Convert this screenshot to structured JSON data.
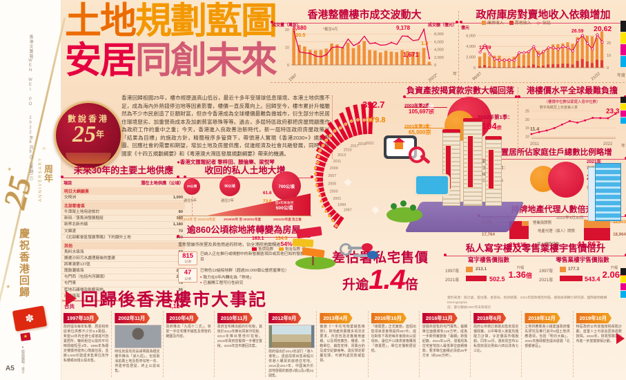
{
  "colors": {
    "accent_red": "#e50038",
    "crimson": "#c2003c",
    "orange": "#f08300",
    "bar_orange": "#f0913a",
    "gold": "#c8a062"
  },
  "page": {
    "paper_name": "香港文匯報WEN WEI PO",
    "date": "2022年6月8日（星期三）",
    "page_no": "A5",
    "credit": "●版面編輯：采子",
    "anniversary": {
      "num": "25",
      "suffix": "周年",
      "en": "ANNIVERSARY",
      "celebrate": "慶祝香港回歸",
      "flag_icon": "✽"
    }
  },
  "header": {
    "t1a": "土地",
    "t1b": "規劃藍圖",
    "t2a": "安居",
    "t2b": "同創未來",
    "badge_top": "數說香港",
    "badge_num": "25",
    "badge_suffix": "年",
    "intro": "香港回歸祖國25年，樓市經歷過高山低谷，最近十多年受環球低息環境、本港土地供應不足，成為海內外熱錢停泊地等因素影響，樓價一直反覆向上。回歸至今，樓市累計升幅雖然為不少市民創造了巨額財富，但亦令香港成為全球樓價最難負擔城市，衍生部分市民居住環境惡劣、加重營商成本及加劇貧富懸殊等等。過去，多屆特區政府都把房屋問題應作為政府工作的重中之重；今天，香港進入良政善治新時代，新一屆特區政府房屋政策以「結果為目標」的施政方針，精簡程序多管齊下，帶領港人實現《香港2030+》規劃藍圖、回應社會的需要和期望，增加土地及房屋供應，促進經濟及社會共融發展，同時把握國家《十四五規劃綱要》和《粵港澳大灣區發展規劃綱要》帶來的機遇。",
    "byline": "●香港文匯報記者 黎梓田、顏倫樂、梁悅琴"
  },
  "chart_data": [
    {
      "id": "transactions",
      "type": "bar+line",
      "title": "香港整體樓市成交波動大",
      "note": "*截至4月",
      "left_axis_label": "成交量（萬伙）",
      "right_axis_label": "成交額（億元）",
      "left_ticks": [
        "20",
        "10",
        "0"
      ],
      "right_ticks": [
        "8,000",
        "6,000",
        "4,000",
        "2,000",
        "0"
      ],
      "x_start": "1997",
      "x_end": "2022*",
      "x_suffix": "年",
      "left_max": 22,
      "right_max": 10000,
      "volume": [
        20.5,
        11.4,
        10.5,
        8.5,
        8.3,
        8.5,
        9.3,
        12.2,
        11.7,
        10.0,
        12.6,
        9.6,
        11.5,
        13.6,
        8.5,
        8.2,
        7.1,
        8.1,
        7.6,
        7.3,
        8.4,
        7.9,
        7.5,
        7.4,
        9.7,
        1.8
      ],
      "amount": [
        8680,
        3400,
        3100,
        3000,
        2300,
        2100,
        2650,
        4480,
        4700,
        4450,
        6700,
        5000,
        5700,
        7430,
        5500,
        5700,
        5100,
        5200,
        5800,
        5300,
        7500,
        7400,
        6300,
        6500,
        9178,
        1671
      ],
      "annotations": {
        "amount_start": "8,680",
        "volume_start": "20.5",
        "amount_peak": "9,178",
        "volume_end": "1.8",
        "amount_end": "1,671"
      }
    },
    {
      "id": "treasury",
      "type": "stacked-bar+line",
      "title": "政府庫房對賣地收入依賴增加",
      "unit": "億元",
      "right_unit": "%",
      "legend": [
        "庫房收入",
        "賣地收入",
        "佔比"
      ],
      "left_ticks": [
        "6,000",
        "4,000",
        "2,000",
        "0"
      ],
      "right_ticks": [
        "20",
        "10",
        "0"
      ],
      "x_start": "96/97",
      "x_end": "21/22",
      "x_suffix": "年度",
      "left_max": 7000,
      "right_max": 30,
      "revenue": [
        2080,
        2810,
        2160,
        2250,
        2250,
        1750,
        1780,
        2070,
        2640,
        2470,
        2880,
        3580,
        3160,
        3180,
        3760,
        4380,
        4420,
        4550,
        4780,
        4500,
        5730,
        6200,
        6000,
        5900,
        5640,
        6820
      ],
      "land": [
        262,
        505,
        240,
        160,
        135,
        105,
        105,
        125,
        320,
        300,
        370,
        620,
        320,
        420,
        620,
        690,
        670,
        770,
        770,
        610,
        1280,
        1650,
        1170,
        890,
        1500,
        1410
      ],
      "ratio": [
        12.59,
        18,
        11,
        7,
        6,
        6,
        6,
        6,
        12,
        12,
        13,
        17,
        10,
        13,
        16,
        16,
        15,
        17,
        16,
        13.5,
        22,
        26,
        19.5,
        15,
        26.59,
        20.62
      ],
      "annotations": {
        "start": "12.59",
        "peak": "26.59",
        "end": "20.62"
      }
    },
    {
      "id": "affordability",
      "type": "line",
      "title": "港樓價水平全球最難負擔",
      "subtitle": "（樓價中位數佔家庭入息中位數）",
      "note": "數字為截至上年度第三季",
      "y_ticks": [
        "25",
        "20",
        "15",
        "10"
      ],
      "x_start": "2011",
      "x_end": "2022",
      "x_suffix": "年",
      "x": [
        2011,
        2012,
        2013,
        2014,
        2015,
        2016,
        2017,
        2018,
        2019,
        2020,
        2021,
        2022
      ],
      "values": [
        11.4,
        12.6,
        13.5,
        14.9,
        17.0,
        19.0,
        18.1,
        19.4,
        20.9,
        20.8,
        20.7,
        23.3
      ],
      "annotations": {
        "start": "11.4",
        "end": "23.3"
      }
    },
    {
      "id": "price-rent",
      "type": "radial-bar+line",
      "legend": [
        "售價指數",
        "租金指數"
      ],
      "x_suffix": "年",
      "years": [
        1997,
        1998,
        1999,
        2000,
        2001,
        2002,
        2003,
        2004,
        2005,
        2006,
        2007,
        2008,
        2009,
        2010,
        2011,
        2012,
        2013,
        2014,
        2015,
        2016,
        2017,
        2018,
        2019,
        2020,
        2021
      ],
      "price": [
        163.1,
        117.1,
        100,
        89.6,
        78.7,
        69.9,
        61.6,
        78.0,
        92.0,
        92.7,
        103.5,
        120.5,
        121.3,
        150.9,
        182.1,
        206.1,
        242.4,
        256.9,
        296.8,
        286.1,
        333.9,
        377.3,
        383.0,
        381.2,
        392.7
      ],
      "rent": [
        134.5,
        112.6,
        100,
        98.1,
        95.4,
        83.4,
        73.6,
        77.7,
        86.5,
        91.6,
        101.8,
        115.7,
        100.4,
        121.1,
        139.3,
        142.6,
        154.5,
        159.4,
        172.8,
        168.2,
        182.0,
        193.1,
        191.2,
        177.6,
        179.8
      ],
      "annotations": {
        "price_2021": "392.7",
        "rent_2021": "179.8",
        "price_2003": "61.6",
        "rent_2003": "73.6",
        "price_1997": "163.1",
        "rent_1997": "134.5"
      }
    }
  ],
  "sections": {
    "negeq": {
      "title": "負資產按揭貸款宗數大幅回落",
      "p2003_label": "2003年第2季：",
      "p2003_value": "105,697宗",
      "p2001_label": "2001年第3季：",
      "p2001_value": "65,000宗",
      "p2022_label": "2022年第1季：",
      "p2022_value": "104",
      "p2022_unit": "宗"
    },
    "ownership": {
      "title": "自置居所佔家庭住戶總數比例略增",
      "y1997": {
        "year": "1997年",
        "households_label": "家庭住戶數目：",
        "households": "192.28萬",
        "share_label": "佔比：",
        "share": "46.7%"
      },
      "y2021": {
        "year": "2021年",
        "households_label": "家庭住戶數目：",
        "households": "266.95",
        "households_unit": "萬",
        "share_label": "佔比：",
        "share": "51",
        "share_unit": "%"
      }
    },
    "agents": {
      "title": "持牌地產代理人數倍升",
      "left_date": "1999年12月31日：",
      "right_date": "2022年4月30日：",
      "salesperson_label": "營業員牌照",
      "agent_label": "地產代理（個人）牌照",
      "total_label": "個人牌照總數",
      "left": {
        "salesperson": "3,251",
        "agent": "17,764",
        "total": "21,015"
      },
      "right": {
        "salesperson": "22,903",
        "agent": "18,964",
        "total": "41,867"
      }
    },
    "officeretail": {
      "title": "私人寫字樓及零售業樓宇售價倍升",
      "office": {
        "head": "寫字樓售價指數",
        "y1997": "1997年",
        "v1997": "213.1",
        "y2021": "2021年",
        "v2021": "502.5",
        "rise_label": "升幅",
        "rise": "1.36",
        "rise_unit": "倍"
      },
      "retail": {
        "head": "零售業樓宇售價指數",
        "y1997": "1997年",
        "v1997": "177.3",
        "y2021": "2021年",
        "v2021": "543.4",
        "rise_label": "升幅",
        "rise": "2.06",
        "rise_unit": "倍"
      }
    },
    "source": "資料來源：統計處、差估署、金管局、地政總署、2021年施政報告附篇、經絡按揭轉介研究部、國際顧問機構Demographia",
    "source2": "註：部分數據1997年未有統計",
    "supply": {
      "title": "未來30年的主要土地供應",
      "col1": "項目",
      "col2": "潛在土地供應（公頃）",
      "groups": [
        {
          "name": "明日大嶼願景",
          "rows": [
            [
              "交椅洲",
              "1,000"
            ]
          ]
        },
        {
          "name": "北部都會區",
          "rows": [
            [
              "牛潭尾土地用途檢討",
              "80"
            ],
            [
              "新田／落馬洲發展樞紐",
              "340"
            ],
            [
              "新界北新市鎮",
              "1,180"
            ],
            [
              "文錦渡",
              "70"
            ],
            [
              "《北部都會區發展策略》下的額外土地",
              "600"
            ]
          ]
        },
        {
          "name": "其他",
          "rows": [
            [
              "馬料水填海",
              "60"
            ],
            [
              "搬遷沙田污水處理廠後的重建",
              "28"
            ],
            [
              "將軍澳第137區",
              "80"
            ],
            [
              "龍鼓灘填海",
              "220"
            ],
            [
              "屯門西（包括內河碼頭）",
              "220"
            ],
            [
              "屯門東",
              "70"
            ],
            [
              "藍地石礦場及毗鄰用地",
              "96"
            ],
            [
              "欣澳填海",
              "80"
            ]
          ]
        }
      ],
      "total_label": "合共",
      "total": "4,124"
    },
    "resumption": {
      "title": "收回的私人土地大增",
      "c1": "20公頃",
      "c1_label": "過往5年",
      "c2": "90公頃",
      "c2_label": "過往2年",
      "c3": "700公頃",
      "wedge_label": "首5年將收回",
      "wedge_value": "500公頃",
      "x1": "2014/15年 至\n2018/19年度",
      "x2": "2019/20年 至\n2020/21年度",
      "x3": "2021/22年度\n及之後"
    },
    "brownfield": {
      "title": "逾860公頃棕地將轉變為房屋",
      "desc1": "重新發展作房屋及其他用途的棕地，",
      "desc2": "佔全港棕地面積逾",
      "desc_pct": "54%",
      "i1_num": "815",
      "i1_unit": "公頃",
      "i1_text": "已納入正在推行或規劃中的新發展區項目或其他已知的發展項目",
      "i2_num": "47",
      "i2_unit": "公頃",
      "i2_text": "已物色12組棕地群（超過30,000個公營房屋單位）",
      "i2_b1": "致力在6年內轉化為「熟地」",
      "i2_b2": "已展開工程可行性研究"
    },
    "rvd": {
      "line1": "差估署私宅售價",
      "l2a": "升逾",
      "l2big": "1.4",
      "l2c": "倍"
    }
  },
  "timeline": {
    "title": "回歸後香港樓市大事記",
    "items": [
      {
        "date": "1997年10月",
        "tone": "red",
        "text": "政府提出每年私樓、居屋和夾屋單位供應不少於8.5萬個，希望10年內全港七成家庭可自置居所，輪候租住公屋的平均時間縮短至3年。1998年為穩定樓價停建夾心階層住屋，並將4,000伙建成未售單位改作私樓或出租公屋出售。"
      },
      {
        "date": "2002年11月",
        "tone": "red",
        "photo": "portrait",
        "text": "時任房屋局局長孫明揚為穩定樓市推出「孫九招」，包括取消拍賣土地及暫停勾地一年、停建停售居屋、終止公屋出售。"
      },
      {
        "date": "2010年4月",
        "tone": "red",
        "text": "政府推出「九招十二式」，收緊一手住宅樓宇銷售及規管的範圍及內容。"
      },
      {
        "date": "2010年11月",
        "tone": "red",
        "text": "政府宣布推出額外印花稅，其後於2012年推出買家印花稅、2013年推出雙倍印花稅。2019年政府曾擬徵一手樓空置稅，2020年宣布撤回法案。"
      },
      {
        "date": "2012年9月",
        "tone": "red",
        "photo": "site",
        "text": "政府提出於2013年試行「港人港地」，透過招標出售兩幅只供港人購買的啟德住宅地。2016及2017年，中國海外於該地發展的啟德1號(I)及1號(II)開售。"
      },
      {
        "date": "2013年4月",
        "tone": "orange",
        "text": "實施《一手住宅物業銷售條例》，對地產商賣樓多項法定要求，內容包括定義實用面積，以及規管廣告、樓書、示範單位、銷售安排、買賣合約及成交紀錄冊等，違反規定即屬犯罪，可被判處罰款或監禁。"
      },
      {
        "date": "2016年10月",
        "tone": "orange",
        "text": "「綠置居」正式實施，首個出售項目景泰苑提供857伙。成功對象下政府每年會撥出公屋項目，讓住戶以綠表資格購買「綠置居」，單位定價較居屋低。"
      },
      {
        "date": "2016年11月",
        "tone": "red",
        "text": "發展商發售的屯門菁雋，最細單位面積僅有128方呎，成為一手新例實施後「最細」新盤紀錄。2021年12月，發展局為住宅官地加入最低單位面積條款，要求單位面積必須達26平方米（約280方呎）。"
      },
      {
        "date": "2018年6月",
        "tone": "red",
        "text": "政府公布修訂資助出售房屋定價政策，以中等收入家庭負擔能力計算，令定價與市價脫鈎。同年12月，運房局宣布公私營房屋比例由六四比改為七三比。"
      },
      {
        "date": "2018年12月",
        "tone": "orange",
        "text": "土地供應專責小組建議政府優先研究及推行其中8個土地供應選項，包括「明日大嶼」。2021年施政報告提出發展「北部都會區」。"
      },
      {
        "date": "2019年10月",
        "tone": "orange",
        "text": "特區政府公布放寬按揭保險計劃，首置人士可承造更高成數按揭。2022年，財政預算案公布進一步放寬按保計劃。"
      }
    ]
  }
}
